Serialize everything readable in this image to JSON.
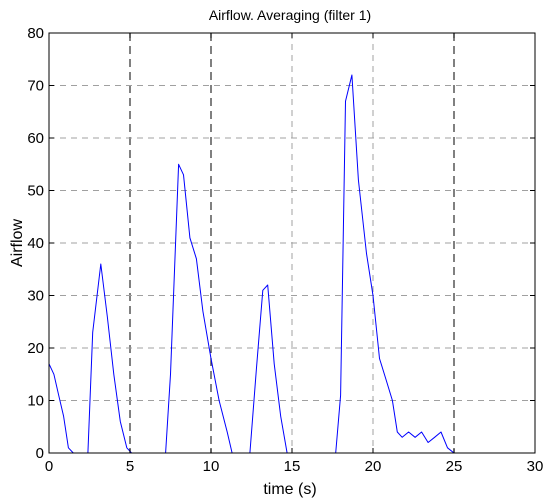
{
  "chart_data": {
    "type": "line",
    "title": "Airflow. Averaging (filter 1)",
    "xlabel": "time (s)",
    "ylabel": "Airflow",
    "xlim": [
      0,
      30
    ],
    "ylim": [
      0,
      80
    ],
    "x_ticks": [
      "0",
      "5",
      "10",
      "15",
      "20",
      "25",
      "30"
    ],
    "y_ticks": [
      "0",
      "10",
      "20",
      "30",
      "40",
      "50",
      "60",
      "70",
      "80"
    ],
    "grid": true,
    "dark_vlines": [
      5,
      10,
      25
    ],
    "line_color": "#0000ff",
    "series": [
      {
        "x": [
          0,
          0.3,
          0.6,
          0.9,
          1.2,
          1.5,
          2.0,
          2.4,
          2.7,
          3.2,
          3.6,
          4.0,
          4.4,
          4.8,
          5.1,
          7.2,
          7.5,
          8.0,
          8.3,
          8.7,
          9.1,
          9.5,
          10.0,
          10.5,
          11.0,
          11.3,
          12.4,
          12.8,
          13.2,
          13.5,
          13.9,
          14.3,
          14.7,
          17.7,
          18.0,
          18.3,
          18.7,
          19.1,
          19.6,
          20.0,
          20.4,
          20.8,
          21.2,
          21.5,
          21.8,
          22.2,
          22.6,
          23.0,
          23.4,
          23.8,
          24.2,
          24.6,
          25.0,
          25.3
        ],
        "y": [
          17,
          15,
          11,
          7,
          1,
          0,
          0,
          0,
          23,
          36,
          26,
          15,
          6,
          1,
          0,
          0,
          15,
          55,
          53,
          41,
          37,
          27,
          18,
          10,
          4,
          0,
          0,
          16,
          31,
          32,
          17,
          7,
          0,
          0,
          11,
          67,
          72,
          52,
          38,
          30,
          18,
          14,
          10,
          4,
          3,
          4,
          3,
          4,
          2,
          3,
          4,
          1,
          0,
          0
        ]
      }
    ]
  }
}
